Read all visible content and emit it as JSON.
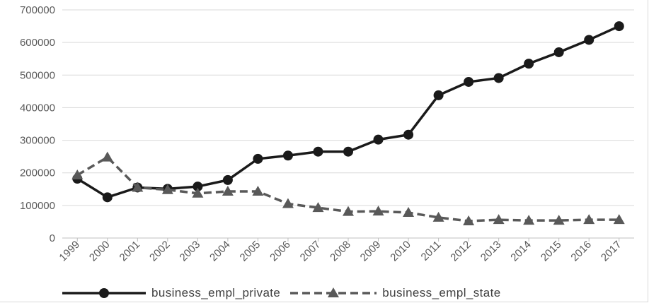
{
  "chart_data": {
    "type": "line",
    "title": "",
    "xlabel": "",
    "ylabel": "",
    "categories": [
      "1999",
      "2000",
      "2001",
      "2002",
      "2003",
      "2004",
      "2005",
      "2006",
      "2007",
      "2008",
      "2009",
      "2010",
      "2011",
      "2012",
      "2013",
      "2014",
      "2015",
      "2016",
      "2017"
    ],
    "ylim": [
      0,
      700000
    ],
    "yticks": [
      0,
      100000,
      200000,
      300000,
      400000,
      500000,
      600000,
      700000
    ],
    "ytick_labels": [
      "0",
      "100000",
      "200000",
      "300000",
      "400000",
      "500000",
      "600000",
      "700000"
    ],
    "grid": true,
    "legend_position": "bottom",
    "series": [
      {
        "name": "business_empl_private",
        "color": "#1a1a1a",
        "line_style": "solid",
        "marker": "circle",
        "values": [
          182000,
          125000,
          155000,
          151000,
          158000,
          178000,
          243000,
          253000,
          265000,
          265000,
          302000,
          317000,
          438000,
          479000,
          491000,
          535000,
          570000,
          608000,
          650000
        ]
      },
      {
        "name": "business_empl_state",
        "color": "#595959",
        "line_style": "dashed",
        "marker": "triangle",
        "values": [
          193000,
          248000,
          155000,
          148000,
          137000,
          143000,
          143000,
          105000,
          93000,
          81000,
          82000,
          78000,
          63000,
          52000,
          56000,
          54000,
          54000,
          56000,
          56000
        ]
      }
    ]
  }
}
